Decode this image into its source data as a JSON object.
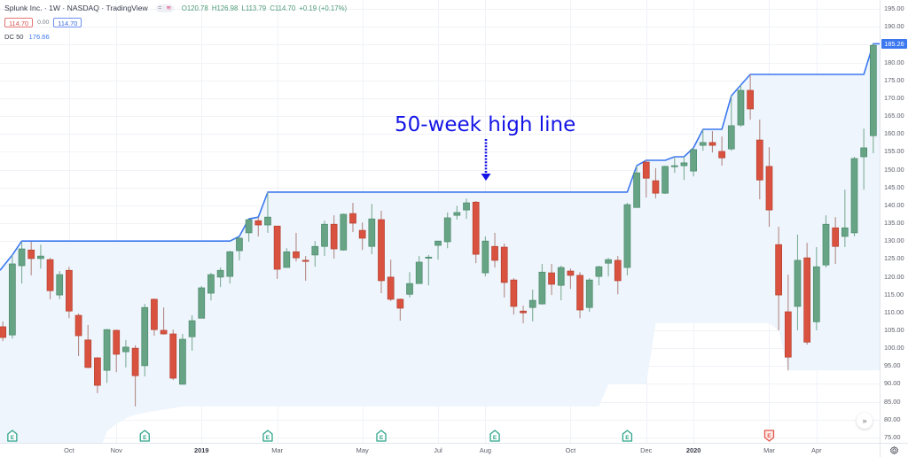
{
  "header": {
    "title": "Splunk Inc. · 1W · NASDAQ · TradingView",
    "pill_left": "=",
    "pill_right": "≋",
    "ohlc": {
      "o": "O120.78",
      "h": "H126.98",
      "l": "L113.79",
      "c": "C114.70",
      "change": "+0.19 (+0.17%)"
    },
    "bid": "114.70",
    "spread": "0.00",
    "ask": "114.70",
    "indicator": {
      "name": "DC 50",
      "value": "176.66"
    }
  },
  "annotation": {
    "text": "50-week high line"
  },
  "price_axis": {
    "last_value_label": "185.26",
    "last_value": 185.26
  },
  "scroll_button": {
    "label": "»"
  },
  "settings_icon": "gear-icon",
  "chart_data": {
    "type": "candlestick",
    "title": "Splunk Inc. · 1W · NASDAQ",
    "xlabel": "",
    "ylabel": "",
    "ylim": [
      73.5,
      197.5
    ],
    "grid": true,
    "legend_position": "top-left",
    "y_ticks": [
      195,
      190,
      185,
      180,
      175,
      170,
      165,
      160,
      155,
      150,
      145,
      140,
      135,
      130,
      125,
      120,
      115,
      110,
      105,
      100,
      95,
      90,
      85,
      80,
      75
    ],
    "x_ticks": [
      {
        "label": "Oct",
        "bar": 7
      },
      {
        "label": "Nov",
        "bar": 12
      },
      {
        "label": "2019",
        "bar": 21,
        "year": true
      },
      {
        "label": "Mar",
        "bar": 29
      },
      {
        "label": "May",
        "bar": 38
      },
      {
        "label": "Jul",
        "bar": 46
      },
      {
        "label": "Aug",
        "bar": 51
      },
      {
        "label": "Oct",
        "bar": 60
      },
      {
        "label": "Dec",
        "bar": 68
      },
      {
        "label": "2020",
        "bar": 73,
        "year": true
      },
      {
        "label": "Mar",
        "bar": 81
      },
      {
        "label": "Apr",
        "bar": 86
      }
    ],
    "ohlc_fields": [
      "open",
      "high",
      "low",
      "close"
    ],
    "ohlc": [
      [
        106.0,
        107.5,
        102.0,
        103.0
      ],
      [
        103.7,
        126.1,
        102.7,
        123.6
      ],
      [
        123.1,
        129.8,
        118.1,
        127.8
      ],
      [
        127.5,
        129.8,
        120.4,
        125.1
      ],
      [
        125.1,
        129.0,
        122.3,
        125.8
      ],
      [
        124.8,
        125.3,
        113.7,
        116.1
      ],
      [
        114.9,
        121.6,
        113.7,
        120.6
      ],
      [
        121.8,
        122.8,
        108.4,
        110.4
      ],
      [
        109.2,
        109.7,
        97.8,
        103.5
      ],
      [
        102.3,
        106.5,
        94.4,
        94.6
      ],
      [
        97.3,
        97.5,
        87.4,
        89.6
      ],
      [
        93.8,
        105.4,
        90.3,
        105.2
      ],
      [
        105.0,
        105.2,
        93.3,
        98.3
      ],
      [
        99.0,
        102.3,
        94.6,
        100.3
      ],
      [
        100.0,
        100.8,
        83.7,
        92.3
      ],
      [
        95.1,
        112.4,
        92.1,
        111.4
      ],
      [
        113.7,
        113.9,
        103.5,
        105.2
      ],
      [
        105.0,
        111.4,
        103.8,
        104.0
      ],
      [
        104.0,
        105.2,
        91.1,
        91.6
      ],
      [
        89.9,
        104.0,
        89.9,
        102.5
      ],
      [
        103.2,
        109.2,
        99.3,
        107.7
      ],
      [
        108.4,
        117.4,
        108.4,
        116.9
      ],
      [
        115.4,
        121.1,
        113.4,
        120.6
      ],
      [
        119.9,
        122.6,
        117.1,
        121.8
      ],
      [
        120.1,
        127.3,
        118.1,
        127.0
      ],
      [
        127.3,
        131.3,
        124.6,
        130.8
      ],
      [
        132.3,
        136.2,
        129.8,
        136.0
      ],
      [
        135.7,
        136.7,
        131.3,
        134.5
      ],
      [
        134.5,
        143.7,
        132.3,
        136.7
      ],
      [
        134.2,
        134.2,
        119.4,
        122.1
      ],
      [
        122.6,
        128.0,
        122.6,
        127.0
      ],
      [
        127.0,
        132.3,
        124.3,
        125.3
      ],
      [
        124.6,
        125.8,
        118.9,
        124.3
      ],
      [
        126.1,
        130.0,
        122.8,
        128.5
      ],
      [
        128.5,
        135.7,
        125.8,
        134.7
      ],
      [
        134.7,
        137.2,
        125.1,
        127.8
      ],
      [
        127.5,
        137.7,
        127.3,
        137.5
      ],
      [
        137.7,
        140.7,
        132.5,
        135.0
      ],
      [
        133.0,
        135.2,
        127.5,
        130.8
      ],
      [
        128.5,
        140.4,
        126.3,
        136.2
      ],
      [
        136.0,
        138.5,
        115.4,
        118.9
      ],
      [
        119.9,
        124.8,
        113.2,
        113.7
      ],
      [
        113.7,
        113.9,
        107.7,
        111.2
      ],
      [
        115.1,
        121.3,
        114.2,
        118.1
      ],
      [
        118.1,
        125.8,
        118.1,
        124.1
      ],
      [
        125.3,
        126.1,
        117.6,
        125.5
      ],
      [
        128.8,
        130.0,
        124.8,
        130.0
      ],
      [
        129.8,
        138.0,
        128.0,
        136.5
      ],
      [
        137.2,
        139.9,
        136.0,
        138.0
      ],
      [
        138.7,
        141.9,
        136.2,
        140.7
      ],
      [
        140.9,
        141.2,
        123.8,
        126.3
      ],
      [
        121.1,
        131.3,
        120.1,
        130.0
      ],
      [
        128.5,
        132.3,
        122.6,
        124.6
      ],
      [
        128.3,
        129.3,
        114.2,
        118.4
      ],
      [
        119.1,
        119.6,
        109.4,
        111.7
      ],
      [
        110.4,
        111.9,
        107.0,
        109.9
      ],
      [
        111.4,
        116.4,
        107.5,
        113.4
      ],
      [
        112.4,
        123.6,
        112.2,
        121.3
      ],
      [
        121.1,
        123.6,
        114.9,
        117.9
      ],
      [
        117.6,
        123.1,
        113.4,
        122.6
      ],
      [
        121.6,
        122.3,
        116.6,
        120.4
      ],
      [
        120.4,
        121.3,
        108.4,
        110.7
      ],
      [
        111.4,
        119.6,
        110.2,
        119.1
      ],
      [
        120.1,
        123.1,
        117.6,
        122.8
      ],
      [
        123.8,
        125.3,
        120.1,
        124.8
      ],
      [
        124.6,
        125.8,
        115.1,
        118.9
      ],
      [
        122.6,
        140.7,
        120.4,
        140.2
      ],
      [
        139.4,
        151.1,
        139.4,
        149.1
      ],
      [
        152.1,
        152.6,
        142.2,
        147.6
      ],
      [
        146.9,
        150.4,
        142.0,
        143.4
      ],
      [
        143.4,
        151.1,
        143.2,
        150.9
      ],
      [
        150.9,
        153.6,
        149.1,
        151.1
      ],
      [
        151.1,
        153.6,
        147.1,
        151.9
      ],
      [
        149.6,
        156.1,
        148.1,
        155.6
      ],
      [
        156.8,
        161.3,
        155.3,
        157.6
      ],
      [
        157.6,
        160.8,
        154.8,
        156.8
      ],
      [
        155.1,
        159.3,
        151.1,
        153.3
      ],
      [
        155.8,
        170.7,
        155.3,
        162.3
      ],
      [
        162.5,
        173.7,
        162.0,
        172.2
      ],
      [
        172.2,
        176.66,
        164.0,
        167.0
      ],
      [
        158.3,
        164.0,
        141.7,
        147.1
      ],
      [
        150.9,
        156.3,
        134.0,
        138.7
      ],
      [
        129.0,
        134.0,
        105.0,
        114.9
      ],
      [
        110.2,
        120.6,
        93.8,
        97.5
      ],
      [
        111.7,
        131.8,
        105.0,
        124.6
      ],
      [
        125.3,
        129.5,
        101.0,
        101.7
      ],
      [
        107.4,
        128.3,
        105.0,
        122.8
      ],
      [
        123.3,
        137.2,
        122.6,
        134.7
      ],
      [
        133.7,
        136.7,
        123.6,
        128.5
      ],
      [
        131.3,
        144.4,
        128.3,
        133.7
      ],
      [
        132.3,
        153.6,
        131.3,
        153.1
      ],
      [
        153.6,
        161.5,
        144.4,
        156.1
      ],
      [
        159.5,
        185.26,
        154.6,
        184.8
      ]
    ],
    "series": [
      {
        "name": "DC 50 upper (50-week high)",
        "values": [
          122.8,
          126.1,
          130,
          130,
          130,
          130,
          130,
          130,
          130,
          130,
          130,
          130,
          130,
          130,
          130,
          130,
          130,
          130,
          130,
          130,
          130,
          130,
          130,
          130,
          130,
          131.3,
          136.2,
          136.7,
          143.7,
          143.7,
          143.7,
          143.7,
          143.7,
          143.7,
          143.7,
          143.7,
          143.7,
          143.7,
          143.7,
          143.7,
          143.7,
          143.7,
          143.7,
          143.7,
          143.7,
          143.7,
          143.7,
          143.7,
          143.7,
          143.7,
          143.7,
          143.7,
          143.7,
          143.7,
          143.7,
          143.7,
          143.7,
          143.7,
          143.7,
          143.7,
          143.7,
          143.7,
          143.7,
          143.7,
          143.7,
          143.7,
          143.7,
          151.1,
          152.6,
          152.6,
          152.6,
          153.6,
          153.6,
          156.1,
          161.3,
          161.3,
          161.3,
          170.7,
          173.7,
          176.66,
          176.66,
          176.66,
          176.66,
          176.66,
          176.66,
          176.66,
          176.66,
          176.66,
          176.66,
          176.66,
          176.66,
          176.66,
          185.26
        ]
      },
      {
        "name": "DC 50 lower (50-week low)",
        "values": [
          70,
          70,
          70,
          70,
          70,
          70,
          70,
          70,
          70,
          70,
          70,
          76.7,
          78.8,
          80.4,
          81.4,
          81.9,
          82.4,
          82.8,
          83.2,
          83.7,
          83.7,
          83.7,
          83.7,
          83.7,
          83.7,
          83.7,
          83.7,
          83.7,
          83.7,
          83.7,
          83.7,
          83.7,
          83.7,
          83.7,
          83.7,
          83.7,
          83.7,
          83.7,
          83.7,
          83.7,
          83.7,
          83.7,
          83.7,
          83.7,
          83.7,
          83.7,
          83.7,
          83.7,
          83.7,
          83.7,
          83.7,
          83.7,
          83.7,
          83.7,
          83.7,
          83.7,
          83.7,
          83.7,
          83.7,
          83.7,
          83.7,
          83.7,
          83.7,
          83.7,
          89.9,
          89.9,
          89.9,
          89.9,
          89.9,
          107,
          107,
          107,
          107,
          107,
          107,
          107,
          107,
          107,
          107,
          107,
          107,
          107,
          105,
          93.8,
          93.8,
          93.8,
          93.8,
          93.8,
          93.8,
          93.8,
          93.8,
          93.8,
          93.8
        ]
      }
    ],
    "earnings_markers": [
      {
        "bar": 1,
        "label": "E",
        "type": "positive"
      },
      {
        "bar": 15,
        "label": "E",
        "type": "positive"
      },
      {
        "bar": 28,
        "label": "E",
        "type": "positive"
      },
      {
        "bar": 40,
        "label": "E",
        "type": "positive"
      },
      {
        "bar": 52,
        "label": "E",
        "type": "positive"
      },
      {
        "bar": 66,
        "label": "E",
        "type": "positive"
      },
      {
        "bar": 81,
        "label": "E",
        "type": "negative"
      }
    ],
    "annotations": [
      {
        "text": "50-week high line",
        "target_bar": 51,
        "target_value": 143.7,
        "style": "dotted-arrow"
      }
    ],
    "colors": {
      "up_body": "#66a485",
      "up_border": "#4b8a6a",
      "up_wick": "#7fae97",
      "down_body": "#d9523f",
      "down_border": "#b53f2e",
      "down_wick": "#b48a85",
      "dc_line": "#3c78f0",
      "dc_fill": "#eef5fd",
      "grid": "#f0f2f7",
      "earnings_positive": "#2fa58b",
      "earnings_negative": "#e0574b",
      "annotation": "#1414e6"
    }
  }
}
